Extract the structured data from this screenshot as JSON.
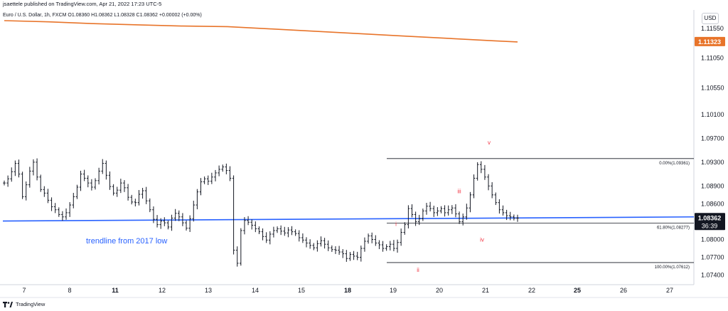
{
  "header": {
    "publisher": "jsaettele published on TradingView.com, Apr 21, 2022 17:23 UTC-5"
  },
  "legend": {
    "symbol_line": "Euro / U.S. Dollar, 1h, FXCM  O1.08360  H1.08362  L1.08328  C1.08362  +0.00002 (+0.00%)"
  },
  "currency_button": "USD",
  "footer": {
    "brand": "TradingView"
  },
  "colors": {
    "ma_line": "#e8742a",
    "trendline": "#2962ff",
    "trendline_text": "#2962ff",
    "wave_labels": "#f23645",
    "price_label_bg": "#131722",
    "ma_label_bg": "#e8742a",
    "bars": "#131722",
    "fib_lines": "#131722"
  },
  "chart_data": {
    "type": "ohlc",
    "instrument": "EURUSD",
    "timeframe": "1h",
    "y_axis": {
      "ticks": [
        "1.11550",
        "1.11050",
        "1.10550",
        "1.10100",
        "1.09700",
        "1.09300",
        "1.08900",
        "1.08600",
        "1.08000",
        "1.07700",
        "1.07400"
      ],
      "ylim": [
        1.0724,
        1.1186
      ]
    },
    "x_axis": {
      "ticks": [
        "7",
        "8",
        "11",
        "12",
        "13",
        "14",
        "15",
        "18",
        "19",
        "20",
        "21",
        "22",
        "25",
        "26",
        "27"
      ],
      "bold_ticks": [
        "11",
        "18",
        "25"
      ]
    },
    "current_price": {
      "value": 1.08362,
      "label": "1.08362",
      "countdown": "36:39"
    },
    "moving_average": {
      "label": "1.11323",
      "last_value": 1.11323,
      "points": [
        [
          0,
          1.1168
        ],
        [
          1,
          1.1166
        ],
        [
          2,
          1.1163
        ],
        [
          3,
          1.1161
        ],
        [
          4,
          1.1159
        ],
        [
          5,
          1.1158
        ],
        [
          6,
          1.1154
        ],
        [
          7,
          1.115
        ],
        [
          8,
          1.1146
        ],
        [
          9,
          1.1142
        ],
        [
          10,
          1.1138
        ],
        [
          11,
          1.1134
        ],
        [
          11.5,
          1.11323
        ]
      ]
    },
    "closes": [
      1.0895,
      1.0902,
      1.0914,
      1.0928,
      1.091,
      1.0872,
      1.0892,
      1.0915,
      1.093,
      1.0905,
      1.0884,
      1.0878,
      1.0866,
      1.0855,
      1.085,
      1.0842,
      1.0838,
      1.0845,
      1.0858,
      1.0872,
      1.0888,
      1.091,
      1.0903,
      1.0895,
      1.0888,
      1.0899,
      1.0915,
      1.0928,
      1.0908,
      1.0889,
      1.0878,
      1.0883,
      1.0895,
      1.0887,
      1.0871,
      1.0863,
      1.0862,
      1.0876,
      1.0882,
      1.0865,
      1.085,
      1.0834,
      1.0825,
      1.0831,
      1.0828,
      1.0821,
      1.0836,
      1.0844,
      1.0838,
      1.0828,
      1.0819,
      1.0835,
      1.0858,
      1.088,
      1.0897,
      1.0902,
      1.0898,
      1.0905,
      1.0912,
      1.0918,
      1.0922,
      1.0916,
      1.0903,
      1.0782,
      1.076,
      1.0815,
      1.0832,
      1.0829,
      1.0824,
      1.0818,
      1.0813,
      1.0805,
      1.0799,
      1.0809,
      1.0815,
      1.0818,
      1.0814,
      1.0811,
      1.0816,
      1.0813,
      1.081,
      1.0803,
      1.0799,
      1.0794,
      1.079,
      1.0786,
      1.0793,
      1.0798,
      1.0792,
      1.0786,
      1.0783,
      1.0782,
      1.0779,
      1.0776,
      1.0768,
      1.0775,
      1.0772,
      1.077,
      1.0785,
      1.0797,
      1.0806,
      1.08,
      1.0794,
      1.0791,
      1.0785,
      1.0788,
      1.0792,
      1.0785,
      1.0795,
      1.0812,
      1.0825,
      1.0852,
      1.0842,
      1.083,
      1.0835,
      1.0848,
      1.0856,
      1.0852,
      1.0845,
      1.0848,
      1.0852,
      1.0845,
      1.085,
      1.0853,
      1.0843,
      1.083,
      1.0838,
      1.0853,
      1.0875,
      1.0903,
      1.0926,
      1.0918,
      1.0905,
      1.089,
      1.0875,
      1.0862,
      1.085,
      1.0845,
      1.084,
      1.0838,
      1.0836,
      1.0836
    ],
    "trendline": {
      "label": "trendline from 2017 low",
      "start": 1.0831,
      "end": 1.0838
    },
    "fibonacci": [
      {
        "label": "0.00%(1.09361)",
        "value": 1.09361
      },
      {
        "label": "61.80%(1.08277)",
        "value": 1.08277
      },
      {
        "label": "100.00%(1.07612)",
        "value": 1.07612
      }
    ],
    "wave_labels": [
      {
        "label": "i",
        "value": 1.0818
      },
      {
        "label": "ii",
        "value": 1.076
      },
      {
        "label": "iii",
        "value": 1.0873
      },
      {
        "label": "iv",
        "value": 1.0813
      },
      {
        "label": "v",
        "value": 1.0955
      }
    ]
  }
}
